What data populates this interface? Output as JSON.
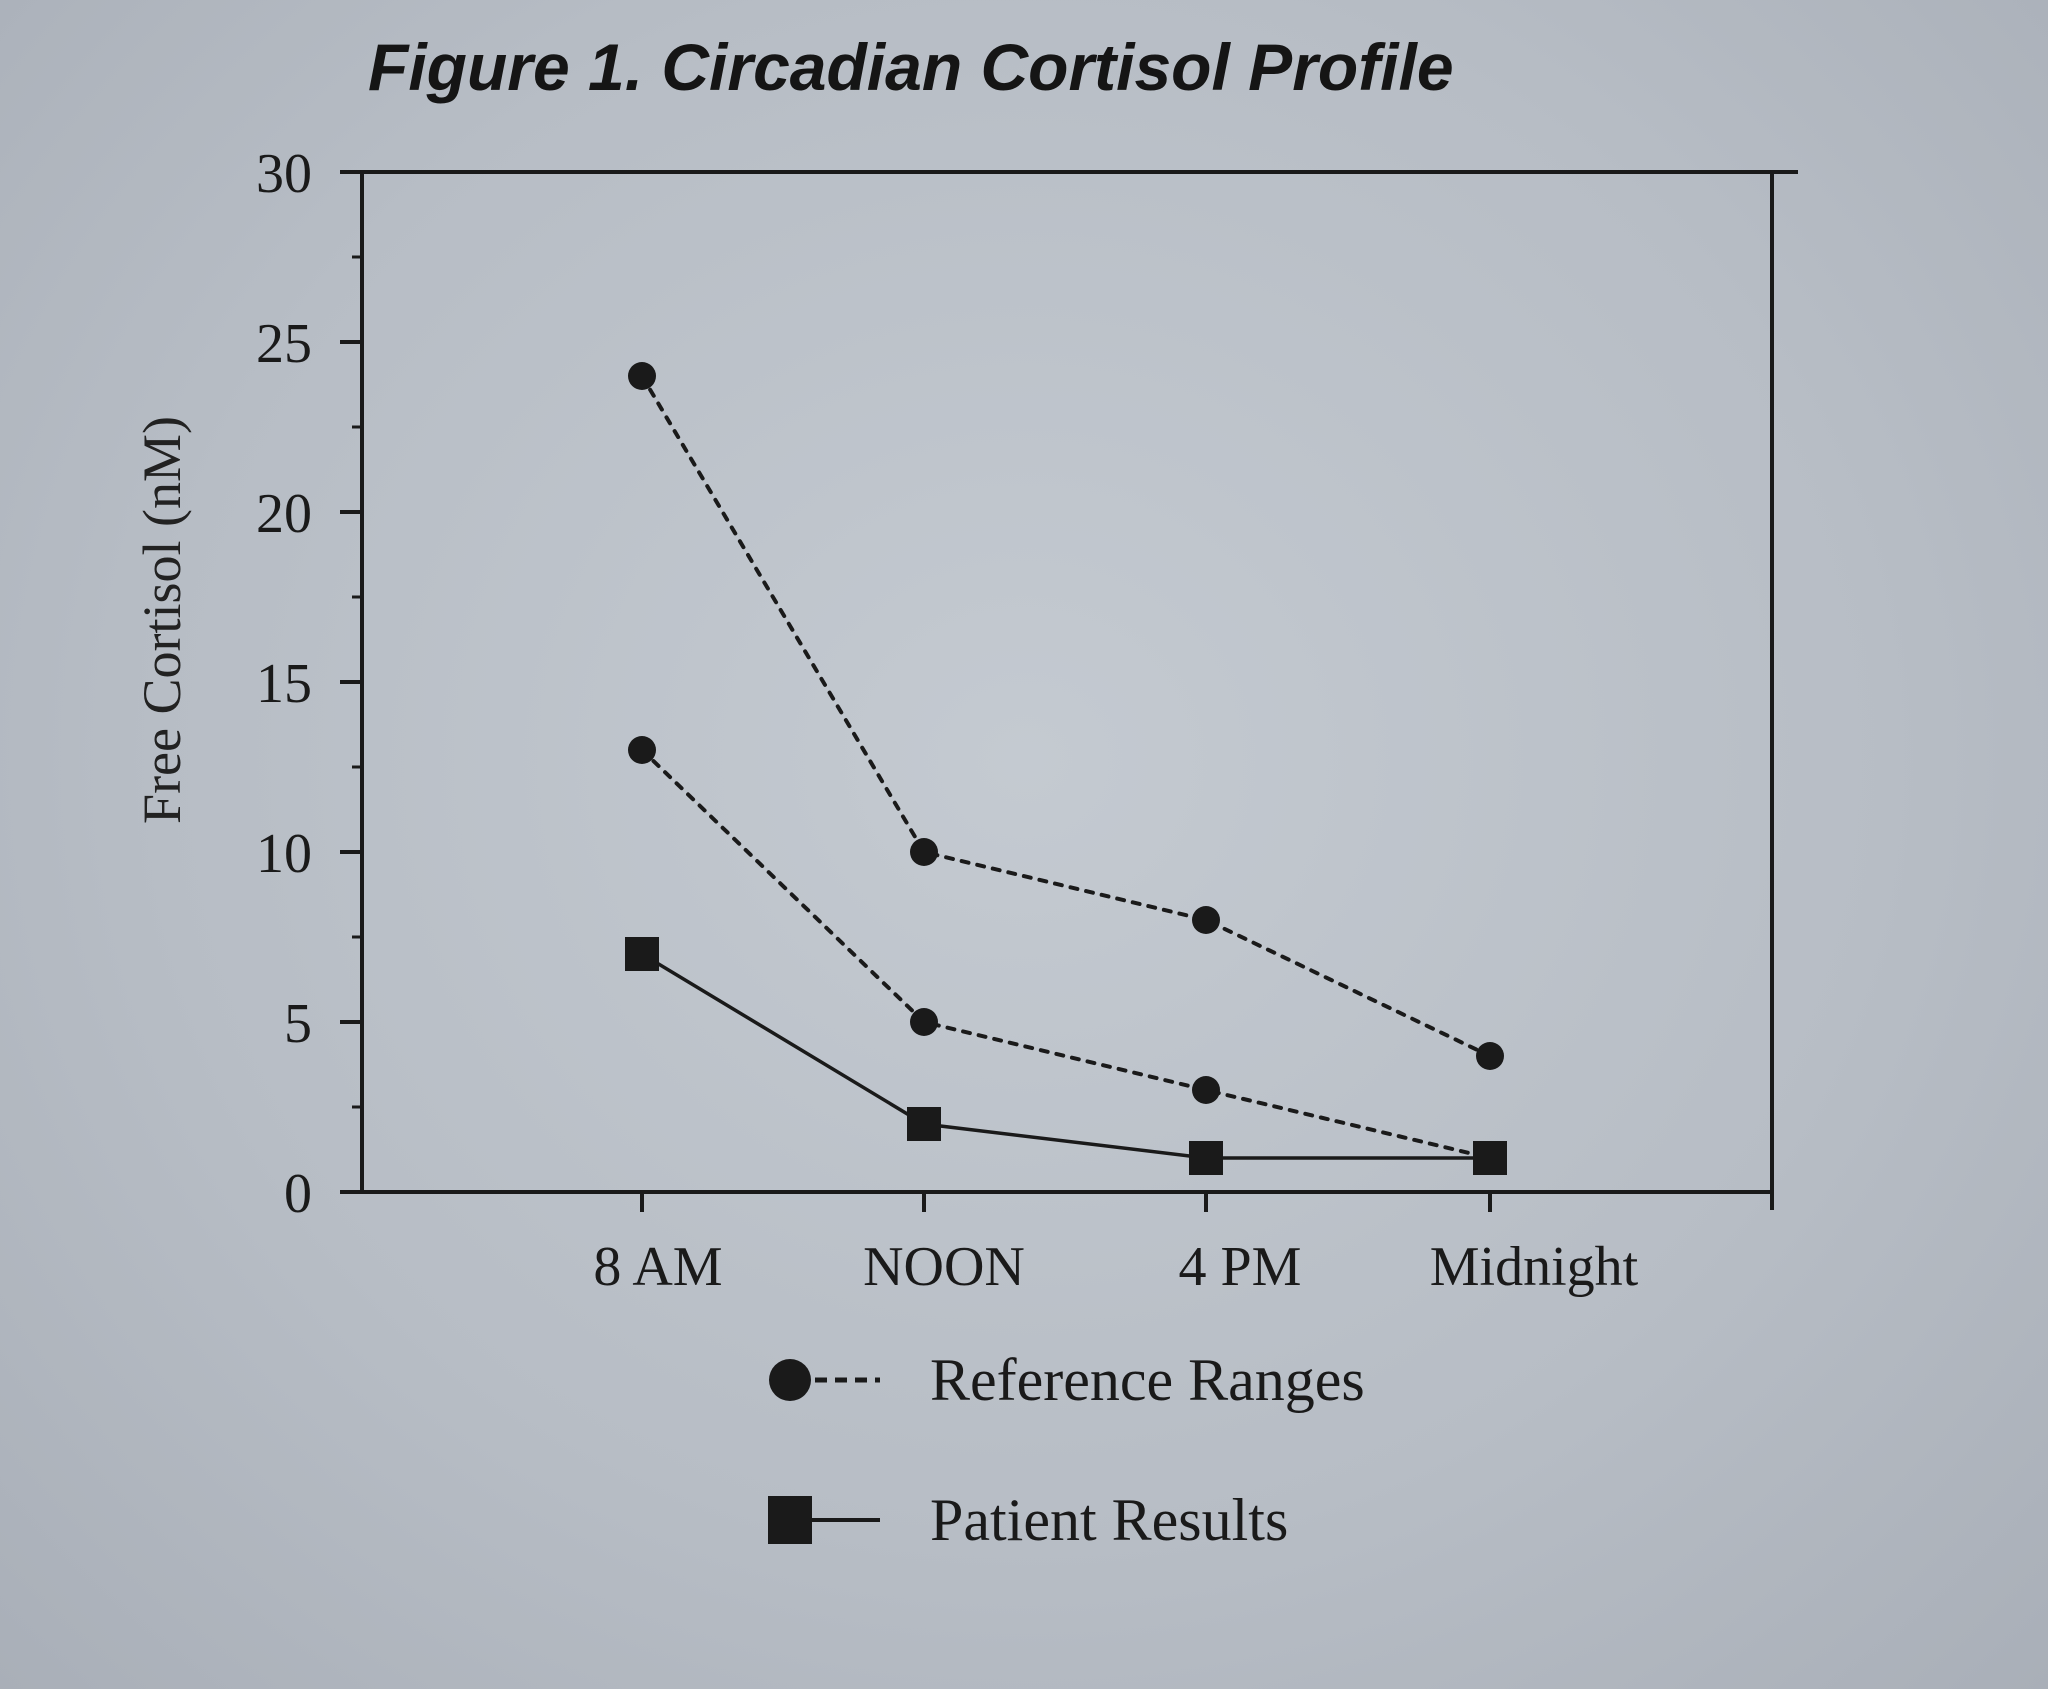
{
  "chart_data": {
    "type": "line",
    "title": "Figure 1.  Circadian Cortisol Profile",
    "ylabel": "Free Cortisol (nM)",
    "xlabel": "",
    "categories": [
      "8 AM",
      "NOON",
      "4 PM",
      "Midnight"
    ],
    "ylim": [
      0,
      30
    ],
    "yticks": [
      0,
      5,
      10,
      15,
      20,
      25,
      30
    ],
    "grid": false,
    "legend_position": "bottom",
    "series": [
      {
        "name": "Reference Ranges",
        "marker": "circle",
        "line_style": "dotted",
        "values": [
          24,
          10,
          8,
          4
        ]
      },
      {
        "name": "Reference Ranges",
        "marker": "circle",
        "line_style": "dotted",
        "values": [
          13,
          5,
          3,
          1
        ]
      },
      {
        "name": "Patient Results",
        "marker": "square",
        "line_style": "solid",
        "values": [
          7,
          2,
          1,
          1
        ]
      }
    ],
    "legend": [
      {
        "label": "Reference Ranges",
        "marker": "circle",
        "line_style": "dotted"
      },
      {
        "label": "Patient Results",
        "marker": "square",
        "line_style": "solid"
      }
    ],
    "colors": {
      "ink": "#1a1a1a",
      "paper": "#bcc2c9"
    }
  }
}
